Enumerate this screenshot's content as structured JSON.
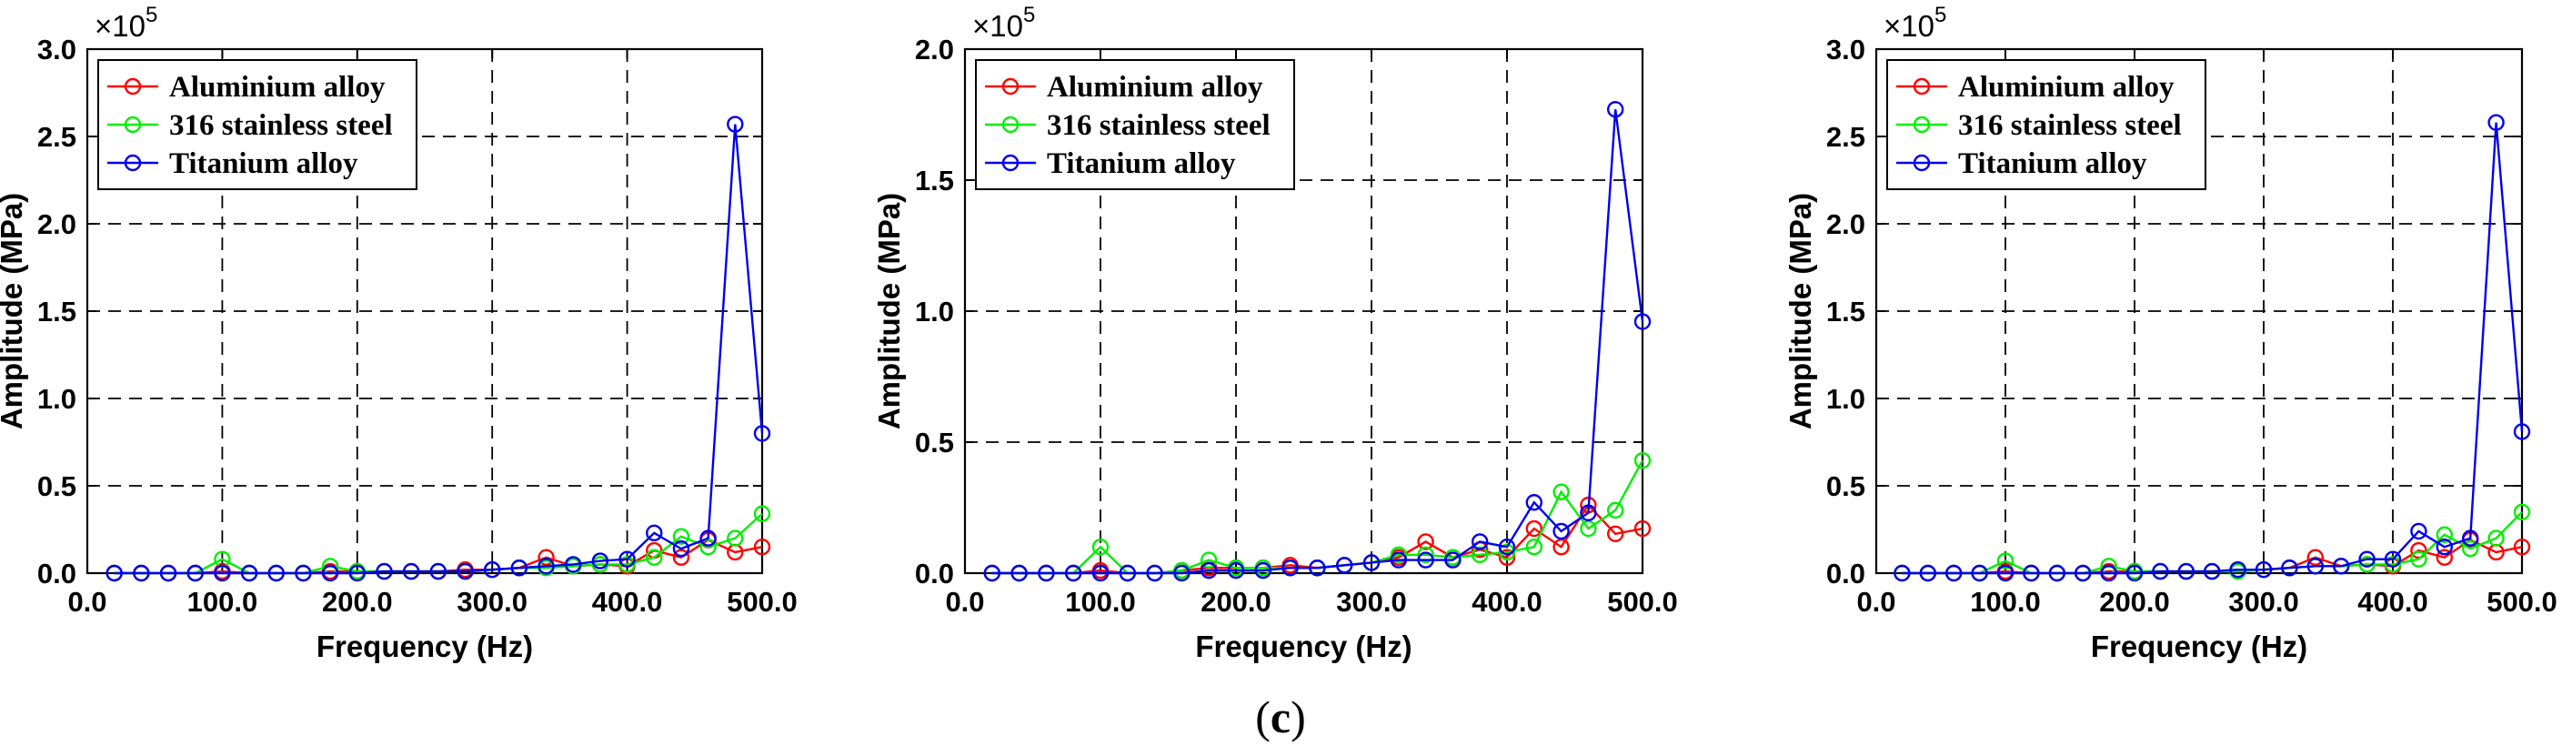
{
  "figure": {
    "caption": {
      "open": "(",
      "letter": "c",
      "close": ")"
    }
  },
  "colors": {
    "aluminium": "#ff0000",
    "steel": "#00ee00",
    "titanium": "#0000ee"
  },
  "chart_data": [
    {
      "type": "line",
      "title": "",
      "xlabel": "Frequency (Hz)",
      "ylabel": "Amplitude (MPa)",
      "y_multiplier": "×10",
      "y_multiplier_exp": "5",
      "xlim": [
        0,
        500
      ],
      "ylim": [
        0,
        3.0
      ],
      "xticks": [
        "0.0",
        "100.0",
        "200.0",
        "300.0",
        "400.0",
        "500.0"
      ],
      "xtick_values": [
        0,
        100,
        200,
        300,
        400,
        500
      ],
      "yticks": [
        "0.0",
        "0.5",
        "1.0",
        "1.5",
        "2.0",
        "2.5",
        "3.0"
      ],
      "ytick_values": [
        0,
        0.5,
        1.0,
        1.5,
        2.0,
        2.5,
        3.0
      ],
      "grid": true,
      "legend_position": "top-left",
      "x": [
        20,
        40,
        60,
        80,
        100,
        120,
        140,
        160,
        180,
        200,
        220,
        240,
        260,
        280,
        300,
        320,
        340,
        360,
        380,
        400,
        420,
        440,
        460,
        480,
        500
      ],
      "series": [
        {
          "name": "Aluminium alloy",
          "color_key": "aluminium",
          "values": [
            0,
            0,
            0,
            0,
            0.01,
            0,
            0,
            0,
            0.01,
            0.01,
            0.01,
            0.01,
            0.01,
            0.02,
            0.02,
            0.03,
            0.09,
            0.04,
            0.05,
            0.04,
            0.13,
            0.09,
            0.19,
            0.12,
            0.15
          ]
        },
        {
          "name": "316 stainless steel",
          "color_key": "steel",
          "values": [
            0,
            0,
            0,
            0,
            0.08,
            0,
            0,
            0,
            0.04,
            0.01,
            0.01,
            0.01,
            0.01,
            0.01,
            0.02,
            0.03,
            0.03,
            0.04,
            0.05,
            0.05,
            0.09,
            0.21,
            0.15,
            0.2,
            0.34
          ]
        },
        {
          "name": "Titanium alloy",
          "color_key": "titanium",
          "values": [
            0,
            0,
            0,
            0,
            0,
            0,
            0,
            0,
            0,
            0,
            0.01,
            0.01,
            0.01,
            0.01,
            0.02,
            0.03,
            0.04,
            0.05,
            0.07,
            0.08,
            0.23,
            0.14,
            0.2,
            2.57,
            0.8
          ]
        }
      ]
    },
    {
      "type": "line",
      "title": "",
      "xlabel": "Frequency (Hz)",
      "ylabel": "Amplitude (MPa)",
      "y_multiplier": "×10",
      "y_multiplier_exp": "5",
      "xlim": [
        0,
        500
      ],
      "ylim": [
        0,
        2.0
      ],
      "xticks": [
        "0.0",
        "100.0",
        "200.0",
        "300.0",
        "400.0",
        "500.0"
      ],
      "xtick_values": [
        0,
        100,
        200,
        300,
        400,
        500
      ],
      "yticks": [
        "0.0",
        "0.5",
        "1.0",
        "1.5",
        "2.0"
      ],
      "ytick_values": [
        0,
        0.5,
        1.0,
        1.5,
        2.0
      ],
      "grid": true,
      "legend_position": "top-left",
      "x": [
        20,
        40,
        60,
        80,
        100,
        120,
        140,
        160,
        180,
        200,
        220,
        240,
        260,
        280,
        300,
        320,
        340,
        360,
        380,
        400,
        420,
        440,
        460,
        480,
        500
      ],
      "series": [
        {
          "name": "Aluminium alloy",
          "color_key": "aluminium",
          "values": [
            0,
            0,
            0,
            0,
            0.01,
            0,
            0,
            0.01,
            0.02,
            0.02,
            0.02,
            0.03,
            0.02,
            0.03,
            0.04,
            0.06,
            0.12,
            0.06,
            0.09,
            0.06,
            0.17,
            0.1,
            0.26,
            0.15,
            0.17
          ]
        },
        {
          "name": "316 stainless steel",
          "color_key": "steel",
          "values": [
            0,
            0,
            0,
            0,
            0.1,
            0,
            0,
            0.01,
            0.05,
            0.02,
            0.02,
            0.02,
            0.02,
            0.03,
            0.04,
            0.07,
            0.07,
            0.06,
            0.07,
            0.08,
            0.1,
            0.31,
            0.17,
            0.24,
            0.43
          ]
        },
        {
          "name": "Titanium alloy",
          "color_key": "titanium",
          "values": [
            0,
            0,
            0,
            0,
            0,
            0,
            0,
            0,
            0.01,
            0.01,
            0.01,
            0.02,
            0.02,
            0.03,
            0.04,
            0.05,
            0.05,
            0.05,
            0.12,
            0.1,
            0.27,
            0.16,
            0.23,
            1.77,
            0.96
          ]
        }
      ]
    },
    {
      "type": "line",
      "title": "",
      "xlabel": "Frequency (Hz)",
      "ylabel": "Amplitude (MPa)",
      "y_multiplier": "×10",
      "y_multiplier_exp": "5",
      "xlim": [
        0,
        500
      ],
      "ylim": [
        0,
        3.0
      ],
      "xticks": [
        "0.0",
        "100.0",
        "200.0",
        "300.0",
        "400.0",
        "500.0"
      ],
      "xtick_values": [
        0,
        100,
        200,
        300,
        400,
        500
      ],
      "yticks": [
        "0.0",
        "0.5",
        "1.0",
        "1.5",
        "2.0",
        "2.5",
        "3.0"
      ],
      "ytick_values": [
        0,
        0.5,
        1.0,
        1.5,
        2.0,
        2.5,
        3.0
      ],
      "grid": true,
      "legend_position": "top-left",
      "x": [
        20,
        40,
        60,
        80,
        100,
        120,
        140,
        160,
        180,
        200,
        220,
        240,
        260,
        280,
        300,
        320,
        340,
        360,
        380,
        400,
        420,
        440,
        460,
        480,
        500
      ],
      "series": [
        {
          "name": "Aluminium alloy",
          "color_key": "aluminium",
          "values": [
            0,
            0,
            0,
            0,
            0.01,
            0,
            0,
            0,
            0.01,
            0.01,
            0.01,
            0.01,
            0.01,
            0.02,
            0.02,
            0.03,
            0.09,
            0.04,
            0.05,
            0.04,
            0.13,
            0.09,
            0.19,
            0.12,
            0.15
          ]
        },
        {
          "name": "316 stainless steel",
          "color_key": "steel",
          "values": [
            0,
            0,
            0,
            0,
            0.07,
            0,
            0,
            0,
            0.04,
            0.01,
            0.01,
            0.01,
            0.01,
            0.01,
            0.02,
            0.03,
            0.04,
            0.04,
            0.05,
            0.05,
            0.08,
            0.22,
            0.14,
            0.2,
            0.35
          ]
        },
        {
          "name": "Titanium alloy",
          "color_key": "titanium",
          "values": [
            0,
            0,
            0,
            0,
            0,
            0,
            0,
            0,
            0,
            0,
            0.01,
            0.01,
            0.01,
            0.02,
            0.02,
            0.03,
            0.04,
            0.04,
            0.08,
            0.08,
            0.24,
            0.15,
            0.2,
            2.58,
            0.81
          ]
        }
      ]
    }
  ]
}
